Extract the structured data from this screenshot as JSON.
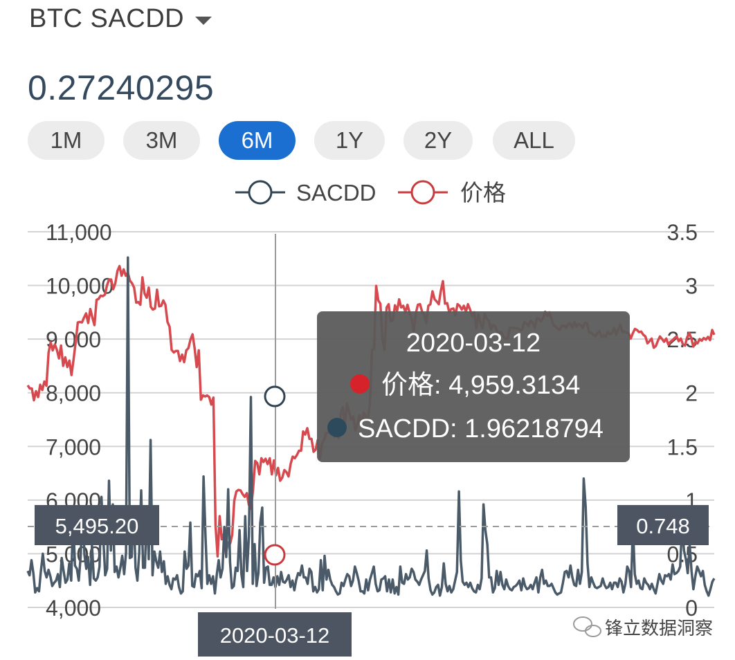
{
  "header": {
    "asset_selector": "BTC SACDD",
    "current_value": "0.27240295"
  },
  "range_buttons": [
    {
      "label": "1M",
      "active": false
    },
    {
      "label": "3M",
      "active": false
    },
    {
      "label": "6M",
      "active": true
    },
    {
      "label": "1Y",
      "active": false
    },
    {
      "label": "2Y",
      "active": false
    },
    {
      "label": "ALL",
      "active": false
    }
  ],
  "colors": {
    "sacdd": "#4a5a68",
    "price": "#d64a4f",
    "active_button": "#1a6fd0",
    "tooltip_bg": "#5a5a5a"
  },
  "tooltip": {
    "date": "2020-03-12",
    "rows": [
      {
        "label": "价格",
        "value": "4,959.3134",
        "color": "#d6222b"
      },
      {
        "label": "SACDD",
        "value": "1.96218794",
        "color": "#2c4a5c"
      }
    ]
  },
  "crosshair": {
    "y_left_label": "5,495.20",
    "y_right_label": "0.748",
    "x_label": "2020-03-12"
  },
  "watermark": "锋立数据洞察",
  "chart_data": {
    "type": "line",
    "legend_position": "top",
    "grid": true,
    "y_left": {
      "ticks": [
        "11,000",
        "10,000",
        "9,000",
        "8,000",
        "7,000",
        "6,000",
        "5,000",
        "4,000"
      ],
      "range": [
        4000,
        11000
      ]
    },
    "y_right": {
      "ticks": [
        "3.5",
        "3",
        "2.5",
        "2",
        "1.5",
        "1",
        "0.5",
        "0"
      ],
      "range": [
        0,
        3.5
      ]
    },
    "series": [
      {
        "name": "SACDD",
        "axis": "right",
        "values": [
          0.34,
          0.3,
          0.44,
          0.32,
          0.14,
          0.18,
          0.15,
          0.34,
          0.5,
          0.34,
          0.28,
          0.35,
          0.29,
          0.2,
          0.23,
          0.25,
          0.31,
          0.19,
          0.46,
          0.34,
          0.23,
          0.26,
          0.41,
          0.25,
          0.85,
          0.39,
          0.36,
          0.25,
          0.47,
          0.94,
          0.49,
          0.36,
          0.47,
          0.21,
          0.58,
          0.27,
          0.25,
          0.28,
          0.38,
          1.03,
          0.64,
          0.3,
          0.36,
          1.18,
          0.53,
          0.96,
          0.33,
          0.38,
          0.28,
          0.37,
          0.48,
          0.31,
          0.51,
          3.26,
          0.46,
          0.47,
          0.94,
          0.37,
          0.25,
          0.51,
          1.09,
          0.37,
          0.37,
          0.94,
          0.45,
          1.56,
          0.3,
          0.52,
          0.43,
          0.37,
          0.52,
          0.33,
          0.43,
          0.22,
          0.29,
          0.21,
          0.17,
          0.27,
          0.26,
          0.3,
          0.19,
          0.13,
          0.15,
          0.52,
          0.36,
          0.39,
          0.79,
          0.2,
          0.19,
          0.31,
          0.29,
          0.34,
          0.18,
          1.22,
          0.67,
          0.22,
          0.3,
          0.22,
          0.29,
          0.13,
          0.31,
          0.44,
          0.28,
          0.36,
          0.75,
          0.47,
          1.1,
          0.42,
          0.18,
          0.2,
          0.37,
          0.34,
          0.72,
          0.31,
          0.19,
          0.85,
          0.34,
          0.67,
          1.96,
          0.22,
          0.59,
          0.2,
          0.32,
          0.79,
          0.93,
          0.23,
          0.37,
          0.38,
          0.21,
          0.21,
          0.28,
          0.19,
          0.29,
          0.21,
          0.33,
          0.24,
          0.23,
          0.26,
          0.3,
          0.19,
          0.25,
          0.16,
          0.26,
          0.32,
          0.3,
          0.39,
          0.28,
          0.28,
          0.22,
          0.36,
          0.33,
          0.15,
          0.19,
          0.14,
          0.17,
          0.44,
          0.16,
          0.48,
          0.26,
          0.35,
          0.26,
          0.21,
          0.19,
          0.15,
          0.12,
          0.13,
          0.23,
          0.2,
          0.26,
          0.31,
          0.29,
          0.2,
          0.25,
          0.38,
          0.32,
          0.25,
          0.15,
          0.15,
          0.13,
          0.26,
          0.16,
          0.26,
          0.32,
          0.38,
          0.22,
          0.15,
          0.16,
          0.26,
          0.27,
          0.29,
          0.15,
          0.26,
          0.14,
          0.26,
          0.13,
          0.19,
          0.12,
          0.38,
          0.23,
          0.22,
          0.31,
          0.26,
          0.28,
          0.36,
          0.33,
          0.26,
          0.24,
          0.21,
          0.26,
          0.3,
          0.34,
          0.53,
          0.27,
          0.16,
          0.12,
          0.14,
          0.19,
          0.21,
          0.11,
          0.19,
          0.41,
          0.22,
          0.15,
          0.2,
          0.14,
          0.17,
          0.25,
          0.33,
          1.08,
          0.44,
          0.24,
          0.21,
          0.23,
          0.19,
          0.23,
          0.18,
          0.15,
          0.14,
          0.21,
          0.17,
          0.27,
          0.96,
          0.72,
          0.59,
          0.28,
          0.28,
          0.14,
          0.18,
          0.34,
          0.21,
          0.33,
          0.21,
          0.17,
          0.26,
          0.2,
          0.17,
          0.16,
          0.19,
          0.2,
          0.22,
          0.25,
          0.16,
          0.27,
          0.2,
          0.17,
          0.18,
          0.21,
          0.17,
          0.23,
          0.28,
          0.14,
          0.28,
          0.35,
          0.22,
          0.25,
          0.2,
          0.2,
          0.22,
          0.18,
          0.14,
          0.12,
          0.13,
          0.14,
          0.23,
          0.33,
          0.34,
          0.28,
          0.39,
          0.28,
          0.21,
          0.2,
          0.35,
          0.22,
          0.33,
          1.2,
          0.94,
          0.41,
          0.19,
          0.28,
          0.23,
          0.19,
          0.18,
          0.19,
          0.2,
          0.27,
          0.21,
          0.18,
          0.19,
          0.23,
          0.17,
          0.23,
          0.23,
          0.19,
          0.27,
          0.24,
          0.14,
          0.22,
          0.38,
          0.34,
          0.19,
          0.77,
          0.31,
          0.22,
          0.25,
          0.18,
          0.17,
          0.27,
          0.23,
          0.21,
          0.17,
          0.22,
          0.17,
          0.13,
          0.22,
          0.31,
          0.25,
          0.22,
          0.3,
          0.29,
          0.31,
          0.26,
          0.4,
          0.31,
          0.32,
          0.34,
          0.38,
          0.77,
          0.53,
          0.45,
          0.32,
          0.59,
          0.34,
          0.17,
          0.29,
          0.38,
          0.34,
          0.29,
          0.34,
          0.21,
          0.15,
          0.11,
          0.17,
          0.24,
          0.27
        ]
      },
      {
        "name": "价格",
        "axis": "left",
        "values": [
          8140,
          8080,
          8080,
          7860,
          8030,
          7920,
          8150,
          8050,
          8210,
          8130,
          8750,
          8940,
          8790,
          8900,
          8800,
          8640,
          8880,
          8500,
          8660,
          8480,
          8600,
          8330,
          8620,
          8940,
          9310,
          9320,
          9310,
          9400,
          9480,
          9300,
          9560,
          9400,
          9260,
          9730,
          9750,
          9810,
          9800,
          9830,
          10000,
          10110,
          10110,
          9930,
          10040,
          10270,
          10360,
          10180,
          10300,
          10180,
          10240,
          10090,
          10040,
          9960,
          9680,
          9690,
          9640,
          10150,
          9850,
          9770,
          9960,
          9600,
          9550,
          9570,
          9920,
          9610,
          9620,
          9720,
          9640,
          9320,
          9230,
          8800,
          8750,
          8780,
          8780,
          8590,
          8710,
          8570,
          8790,
          8830,
          8990,
          9090,
          8830,
          8480,
          8790,
          7870,
          7950,
          7930,
          7950,
          7920,
          7780,
          7910,
          5530,
          4950,
          5700,
          5270,
          5370,
          5000,
          5210,
          5190,
          5350,
          5990,
          6160,
          6190,
          6180,
          6110,
          6060,
          6130,
          5910,
          5840,
          6190,
          6730,
          6690,
          6480,
          6780,
          6710,
          6770,
          6670,
          6780,
          6480,
          6740,
          6460,
          6600,
          6360,
          6420,
          6560,
          6520,
          6440,
          6670,
          6810,
          6780,
          6840,
          6920,
          6920,
          7280,
          7220,
          7340,
          7140,
          7140,
          6900,
          6940,
          7120,
          6770,
          7050,
          7120,
          7250,
          7260,
          7350,
          7420,
          7180,
          7300,
          7150,
          7600,
          7730,
          7410,
          7800,
          7650,
          7500,
          7560,
          7300,
          7410,
          7580,
          7400,
          7630,
          7560,
          7500,
          7790,
          8800,
          8820,
          9990,
          9720,
          9660,
          9010,
          8800,
          9590,
          9650,
          9330,
          9350,
          9630,
          9520,
          9740,
          9590,
          9620,
          9500,
          9640,
          9490,
          9380,
          9140,
          9480,
          9640,
          9650,
          9510,
          9450,
          9300,
          9620,
          9650,
          9890,
          9740,
          9700,
          9650,
          9900,
          10080,
          9660,
          9670,
          9500,
          9560,
          9570,
          9450,
          9650,
          9620,
          9550,
          9620,
          9510,
          9650,
          9550,
          9430,
          9500,
          9200,
          9460,
          9300,
          9200,
          9470,
          9380,
          9340,
          9180,
          9260,
          9240,
          9140,
          9110,
          9140,
          9040,
          9010,
          9010,
          9210,
          9210,
          9210,
          9200,
          9200,
          9160,
          9180,
          9320,
          9290,
          9240,
          9340,
          9310,
          9210,
          9390,
          9380,
          9330,
          9400,
          9510,
          9430,
          9500,
          9380,
          9250,
          9240,
          9190,
          9170,
          9250,
          9250,
          9210,
          9280,
          9290,
          9210,
          9320,
          9230,
          9280,
          9260,
          9210,
          9300,
          9300,
          9130,
          9120,
          9080,
          9050,
          9110,
          9150,
          9040,
          9070,
          9040,
          9140,
          9090,
          9110,
          9210,
          9080,
          9180,
          9270,
          9130,
          9140,
          9120,
          9110,
          9010,
          9110,
          9190,
          9170,
          9130,
          9140,
          9080,
          9050,
          8920,
          8960,
          9010,
          8840,
          8870,
          8970,
          9050,
          9000,
          8950,
          9010,
          8900,
          8950,
          8980,
          9020,
          9050,
          8960,
          9010,
          8900,
          8880,
          9030,
          9110,
          9020,
          8860,
          8950,
          8920,
          9000,
          8970,
          9020,
          8990,
          9040,
          8980,
          9170,
          9080
        ]
      }
    ]
  }
}
